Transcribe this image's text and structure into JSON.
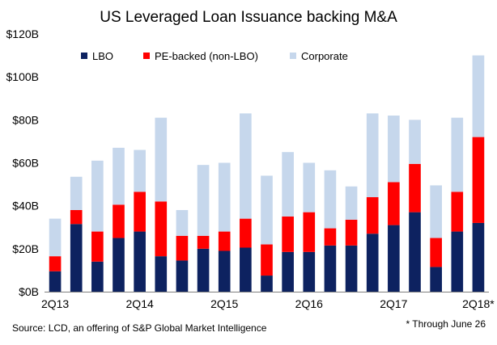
{
  "chart_data": {
    "type": "bar",
    "stacked": true,
    "title": "US Leveraged Loan Issuance backing M&A",
    "xlabel": "",
    "ylabel": "",
    "ylim": [
      0,
      120
    ],
    "y_ticks": [
      0,
      20,
      40,
      60,
      80,
      100,
      120
    ],
    "y_tick_labels": [
      "$0B",
      "$20B",
      "$40B",
      "$60B",
      "$80B",
      "$100B",
      "$120B"
    ],
    "x_tick_labels": [
      "2Q13",
      "2Q14",
      "2Q15",
      "2Q16",
      "2Q17",
      "2Q18*"
    ],
    "x_tick_positions": [
      0,
      4,
      8,
      12,
      16,
      20
    ],
    "categories": [
      "2Q13",
      "3Q13",
      "4Q13",
      "1Q14",
      "2Q14",
      "3Q14",
      "4Q14",
      "1Q15",
      "2Q15",
      "3Q15",
      "4Q15",
      "1Q16",
      "2Q16",
      "3Q16",
      "4Q16",
      "1Q17",
      "2Q17",
      "3Q17",
      "4Q17",
      "1Q18",
      "2Q18*"
    ],
    "grid": false,
    "legend_position": "top",
    "series": [
      {
        "name": "LBO",
        "color": "#0d2260",
        "values": [
          9.5,
          31.5,
          14,
          25,
          28,
          16.5,
          14.5,
          20,
          19,
          20.5,
          7.5,
          18.5,
          18.5,
          21.5,
          21.5,
          27,
          31,
          37,
          11.5,
          28,
          32
        ]
      },
      {
        "name": "PE-backed (non-LBO)",
        "color": "#ff0000",
        "values": [
          7,
          6.5,
          14,
          15.5,
          18.5,
          25.5,
          11.5,
          6,
          9,
          13.5,
          14.5,
          16.5,
          18.5,
          8,
          12,
          17,
          20,
          22.5,
          13.5,
          18.5,
          40
        ]
      },
      {
        "name": "Corporate",
        "color": "#c6d7ec",
        "values": [
          17.5,
          15.5,
          33,
          26.5,
          19.5,
          39,
          12,
          33,
          32,
          49,
          32,
          30,
          23,
          27,
          15.5,
          39,
          31,
          20.5,
          24.5,
          34.5,
          38
        ]
      }
    ],
    "source": "Source: LCD, an offering of S&P Global Market Intelligence",
    "footnote": "* Through June 26"
  }
}
